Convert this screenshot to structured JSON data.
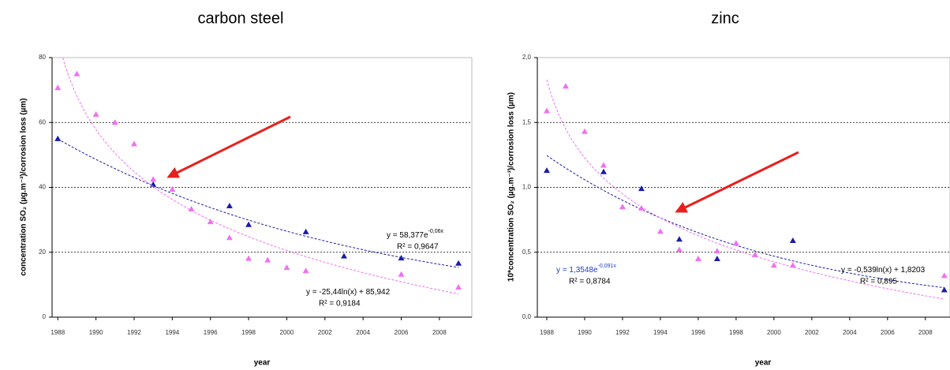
{
  "chart_data": [
    {
      "type": "scatter",
      "title": "carbon steel",
      "xlabel": "year",
      "ylabel": "concentration SO₂ (µg.m⁻³)/corrosion loss (µm)",
      "xlim": [
        1987.7,
        2009.7
      ],
      "ylim": [
        0,
        80
      ],
      "xticks": [
        1988,
        1990,
        1992,
        1994,
        1996,
        1998,
        2000,
        2002,
        2004,
        2006,
        2008
      ],
      "yticks": [
        0,
        20,
        40,
        60,
        80
      ],
      "grid": true,
      "series": [
        {
          "color": "#1c1ca8",
          "trendline": "exponential",
          "x": [
            1988,
            1993,
            1997,
            1998,
            2001,
            2003,
            2006,
            2009
          ],
          "values": [
            55,
            40.9,
            34.3,
            28.5,
            26.3,
            18.8,
            18.2,
            16.6
          ],
          "equation": {
            "text": "y = 58,377e",
            "exponent": "-0,06x",
            "r2": "R² = 0,9647"
          }
        },
        {
          "color": "#f070f0",
          "trendline": "logarithmic",
          "x": [
            1988,
            1989,
            1990,
            1991,
            1992,
            1993,
            1994,
            1995,
            1996,
            1997,
            1998,
            1999,
            2000,
            2001,
            2006,
            2009
          ],
          "values": [
            70.7,
            75,
            62.5,
            60,
            53.4,
            42.5,
            39.4,
            33.3,
            29.4,
            24.5,
            18.1,
            17.6,
            15.3,
            14.3,
            13.2,
            9.2
          ],
          "equation": {
            "text": "y = -25,44ln(x) + 85,942",
            "r2": "R² = 0,9184"
          }
        }
      ]
    },
    {
      "type": "scatter",
      "title": "zinc",
      "xlabel": "year",
      "ylabel": "10*concentration SO₂ (µg.m⁻³)/corrosion loss (µm)",
      "xlim": [
        1987.5,
        2009.3
      ],
      "ylim": [
        0,
        2
      ],
      "xticks": [
        1988,
        1990,
        1992,
        1994,
        1996,
        1998,
        2000,
        2002,
        2004,
        2006,
        2008
      ],
      "yticks": [
        {
          "value": 0,
          "label": "0,0"
        },
        {
          "value": 0.5,
          "label": "0,5"
        },
        {
          "value": 1,
          "label": "1,0"
        },
        {
          "value": 1.5,
          "label": "1,5"
        },
        {
          "value": 2,
          "label": "2,0"
        }
      ],
      "grid": true,
      "series": [
        {
          "color": "#1c1ca8",
          "trendline": "exponential",
          "x": [
            1988,
            1991,
            1993,
            1995,
            1997,
            2001,
            2009
          ],
          "values": [
            1.13,
            1.12,
            0.99,
            0.6,
            0.45,
            0.59,
            0.21
          ],
          "equation": {
            "text": "y = 1,3548e",
            "exponent": "-0,091x",
            "r2": "R² = 0,8784"
          }
        },
        {
          "color": "#f070f0",
          "trendline": "logarithmic",
          "x": [
            1988,
            1989,
            1990,
            1991,
            1992,
            1993,
            1994,
            1995,
            1996,
            1997,
            1998,
            1999,
            2000,
            2001,
            2009
          ],
          "values": [
            1.59,
            1.78,
            1.43,
            1.17,
            0.85,
            0.84,
            0.66,
            0.52,
            0.45,
            0.51,
            0.57,
            0.48,
            0.4,
            0.4,
            0.32
          ],
          "equation": {
            "text": "y = -0,539ln(x) + 1,8203",
            "r2": "R² = 0,895"
          }
        }
      ]
    }
  ]
}
